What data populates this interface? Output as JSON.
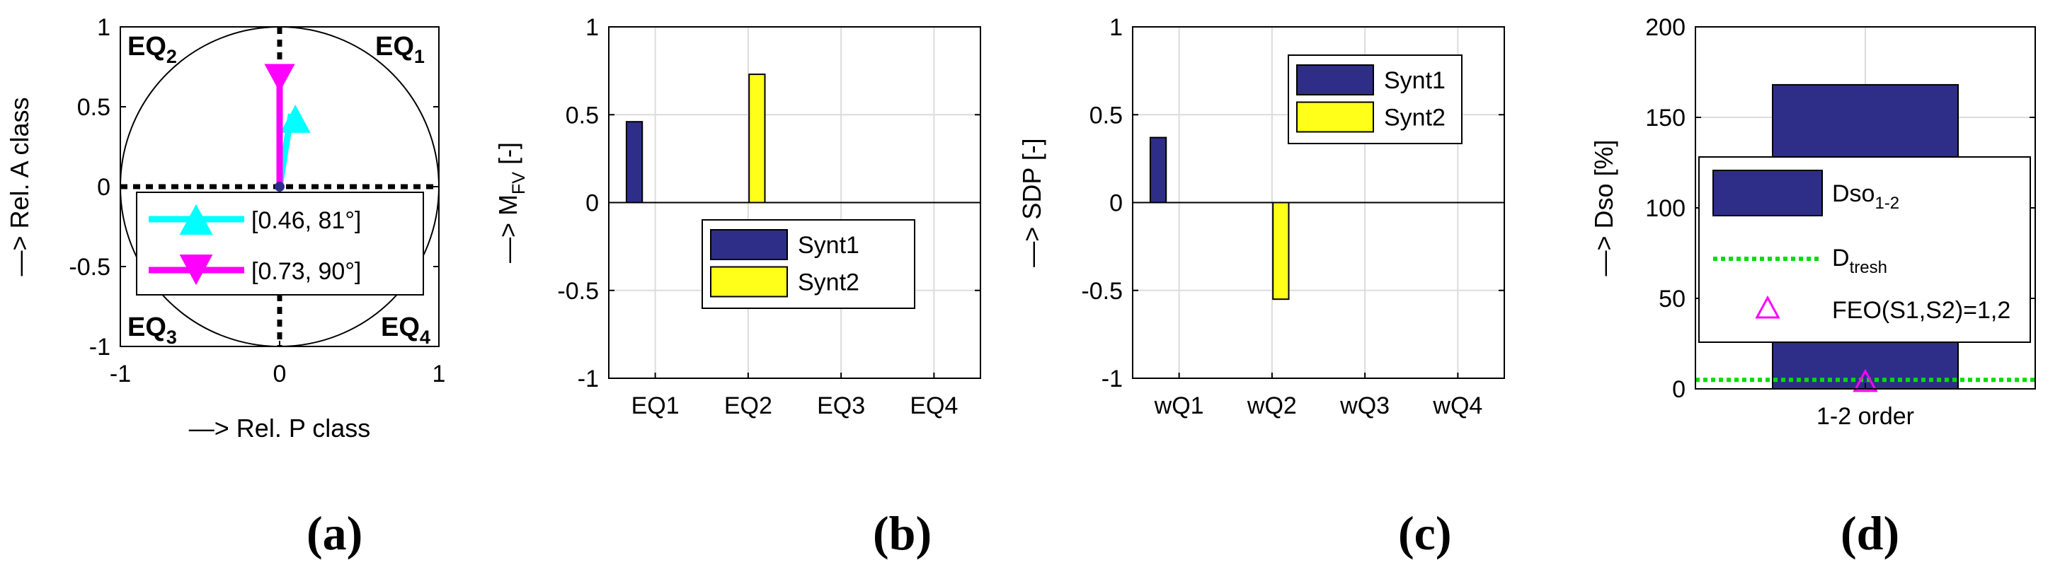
{
  "colors": {
    "navy": "#2e2e88",
    "yellow": "#ffff1a",
    "cyan": "#00ffff",
    "magenta": "#ff00ff",
    "green": "#00dd00",
    "grid": "#dcdcdc",
    "black": "#000000"
  },
  "panels": {
    "a": "(a)",
    "b": "(b)",
    "c": "(c)",
    "d": "(d)"
  },
  "chart_data": [
    {
      "id": "a",
      "type": "scatter",
      "xlabel": "—> Rel. P class",
      "ylabel": "—> Rel. A class",
      "xlim": [
        -1,
        1
      ],
      "ylim": [
        -1,
        1
      ],
      "xticks": [
        "-1",
        "0",
        "1"
      ],
      "yticks": [
        "-1",
        "-0.5",
        "0",
        "0.5",
        "1"
      ],
      "unit_circle": true,
      "quadrant_labels": [
        {
          "base": "EQ",
          "sub": "1",
          "pos": "top-right"
        },
        {
          "base": "EQ",
          "sub": "2",
          "pos": "top-left"
        },
        {
          "base": "EQ",
          "sub": "3",
          "pos": "bottom-left"
        },
        {
          "base": "EQ",
          "sub": "4",
          "pos": "bottom-right"
        }
      ],
      "vectors": [
        {
          "label": "[0.46, 81°]",
          "magnitude": 0.46,
          "angle_deg": 81,
          "color": "#00ffff",
          "marker": "triangle-up"
        },
        {
          "label": "[0.73, 90°]",
          "magnitude": 0.73,
          "angle_deg": 90,
          "color": "#ff00ff",
          "marker": "triangle-down"
        }
      ],
      "legend": "bottom"
    },
    {
      "id": "b",
      "type": "bar",
      "ylabel_base": "—> M",
      "ylabel_sub": "FV",
      "ylabel_tail": " [-]",
      "categories": [
        "EQ1",
        "EQ2",
        "EQ3",
        "EQ4"
      ],
      "ylim": [
        -1,
        1
      ],
      "yticks": [
        "-1",
        "-0.5",
        "0",
        "0.5",
        "1"
      ],
      "series": [
        {
          "name": "Synt1",
          "values": [
            0.46,
            0,
            0,
            0
          ],
          "color": "#2e2e88"
        },
        {
          "name": "Synt2",
          "values": [
            0,
            0.73,
            0,
            0
          ],
          "color": "#ffff1a"
        }
      ],
      "grid": true,
      "legend": "lower-center"
    },
    {
      "id": "c",
      "type": "bar",
      "ylabel": "—> SDP [-]",
      "categories": [
        "wQ1",
        "wQ2",
        "wQ3",
        "wQ4"
      ],
      "ylim": [
        -1,
        1
      ],
      "yticks": [
        "-1",
        "-0.5",
        "0",
        "0.5",
        "1"
      ],
      "series": [
        {
          "name": "Synt1",
          "values": [
            0.37,
            0,
            0,
            0
          ],
          "color": "#2e2e88"
        },
        {
          "name": "Synt2",
          "values": [
            0,
            -0.55,
            0,
            0
          ],
          "color": "#ffff1a"
        }
      ],
      "grid": true,
      "legend": "upper-right"
    },
    {
      "id": "d",
      "type": "bar",
      "ylabel": "—> Dso [%]",
      "categories": [
        "1-2 order"
      ],
      "ylim": [
        0,
        200
      ],
      "yticks": [
        "0",
        "50",
        "100",
        "150",
        "200"
      ],
      "series": [
        {
          "name_base": "Dso",
          "name_sub": "1-2",
          "values": [
            168
          ],
          "color": "#2e2e88"
        }
      ],
      "threshold": {
        "name_base": "D",
        "name_sub": "tresh",
        "value": 5,
        "color": "#00dd00"
      },
      "marker": {
        "label": "FEO(S1,S2)=1,2",
        "x": 0,
        "y": 2,
        "color": "#ff00ff"
      },
      "grid": true,
      "legend": "center"
    }
  ]
}
